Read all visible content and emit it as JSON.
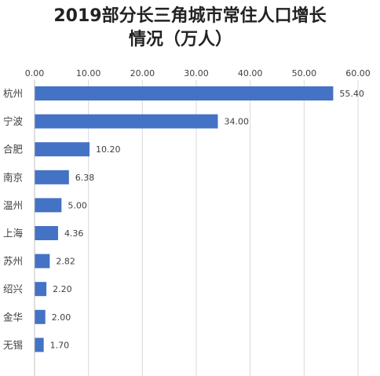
{
  "chart_data": {
    "type": "bar",
    "orientation": "horizontal",
    "title_line1": "2019部分长三角城市常住人口增长",
    "title_line2": "情况（万人）",
    "xlim": [
      0,
      60
    ],
    "x_ticks": [
      "0.00",
      "10.00",
      "20.00",
      "30.00",
      "40.00",
      "50.00",
      "60.00"
    ],
    "categories": [
      "杭州",
      "宁波",
      "合肥",
      "南京",
      "温州",
      "上海",
      "苏州",
      "绍兴",
      "金华",
      "无锡"
    ],
    "values": [
      55.4,
      34.0,
      10.2,
      6.38,
      5.0,
      4.36,
      2.82,
      2.2,
      2.0,
      1.7
    ],
    "value_labels": [
      "55.40",
      "34.00",
      "10.20",
      "6.38",
      "5.00",
      "4.36",
      "2.82",
      "2.20",
      "2.00",
      "1.70"
    ],
    "grid": true,
    "bar_color": "#4472c4"
  }
}
